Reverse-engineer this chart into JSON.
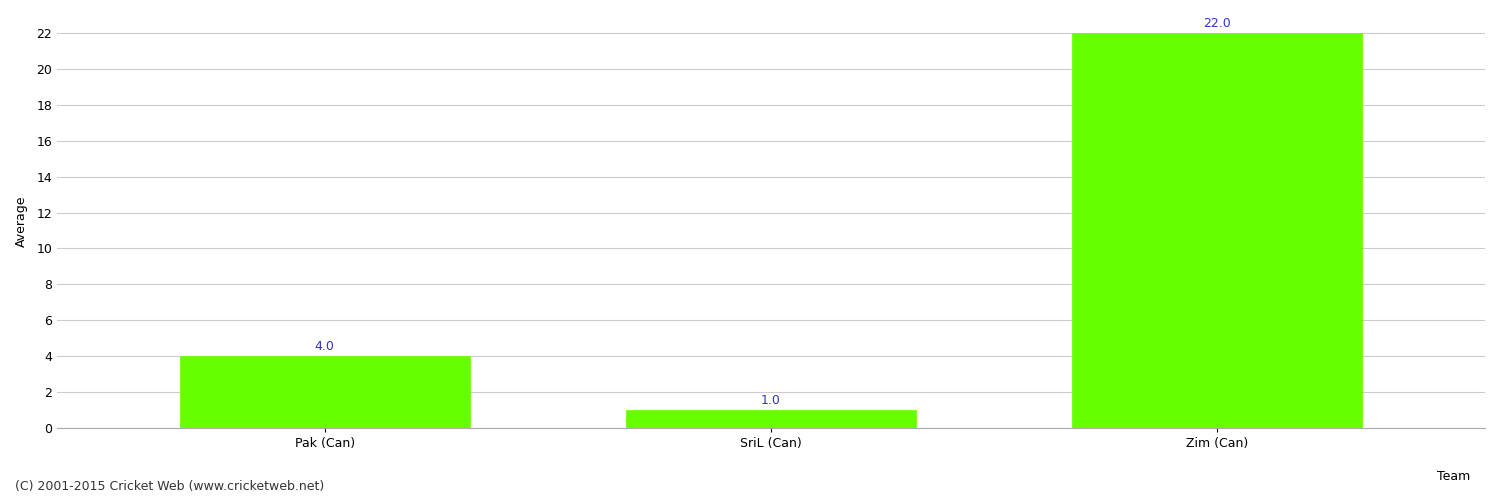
{
  "categories": [
    "Pak (Can)",
    "SriL (Can)",
    "Zim (Can)"
  ],
  "values": [
    4.0,
    1.0,
    22.0
  ],
  "bar_color": "#66ff00",
  "bar_edge_color": "#66ff00",
  "label_color": "#3333cc",
  "xlabel": "Team",
  "ylabel": "Average",
  "ylim": [
    0,
    23
  ],
  "yticks": [
    0,
    2,
    4,
    6,
    8,
    10,
    12,
    14,
    16,
    18,
    20,
    22
  ],
  "grid_color": "#cccccc",
  "background_color": "#ffffff",
  "bar_width": 0.65,
  "annotation_fontsize": 9,
  "axis_label_fontsize": 9,
  "tick_fontsize": 9,
  "footer_text": "(C) 2001-2015 Cricket Web (www.cricketweb.net)",
  "footer_fontsize": 9
}
